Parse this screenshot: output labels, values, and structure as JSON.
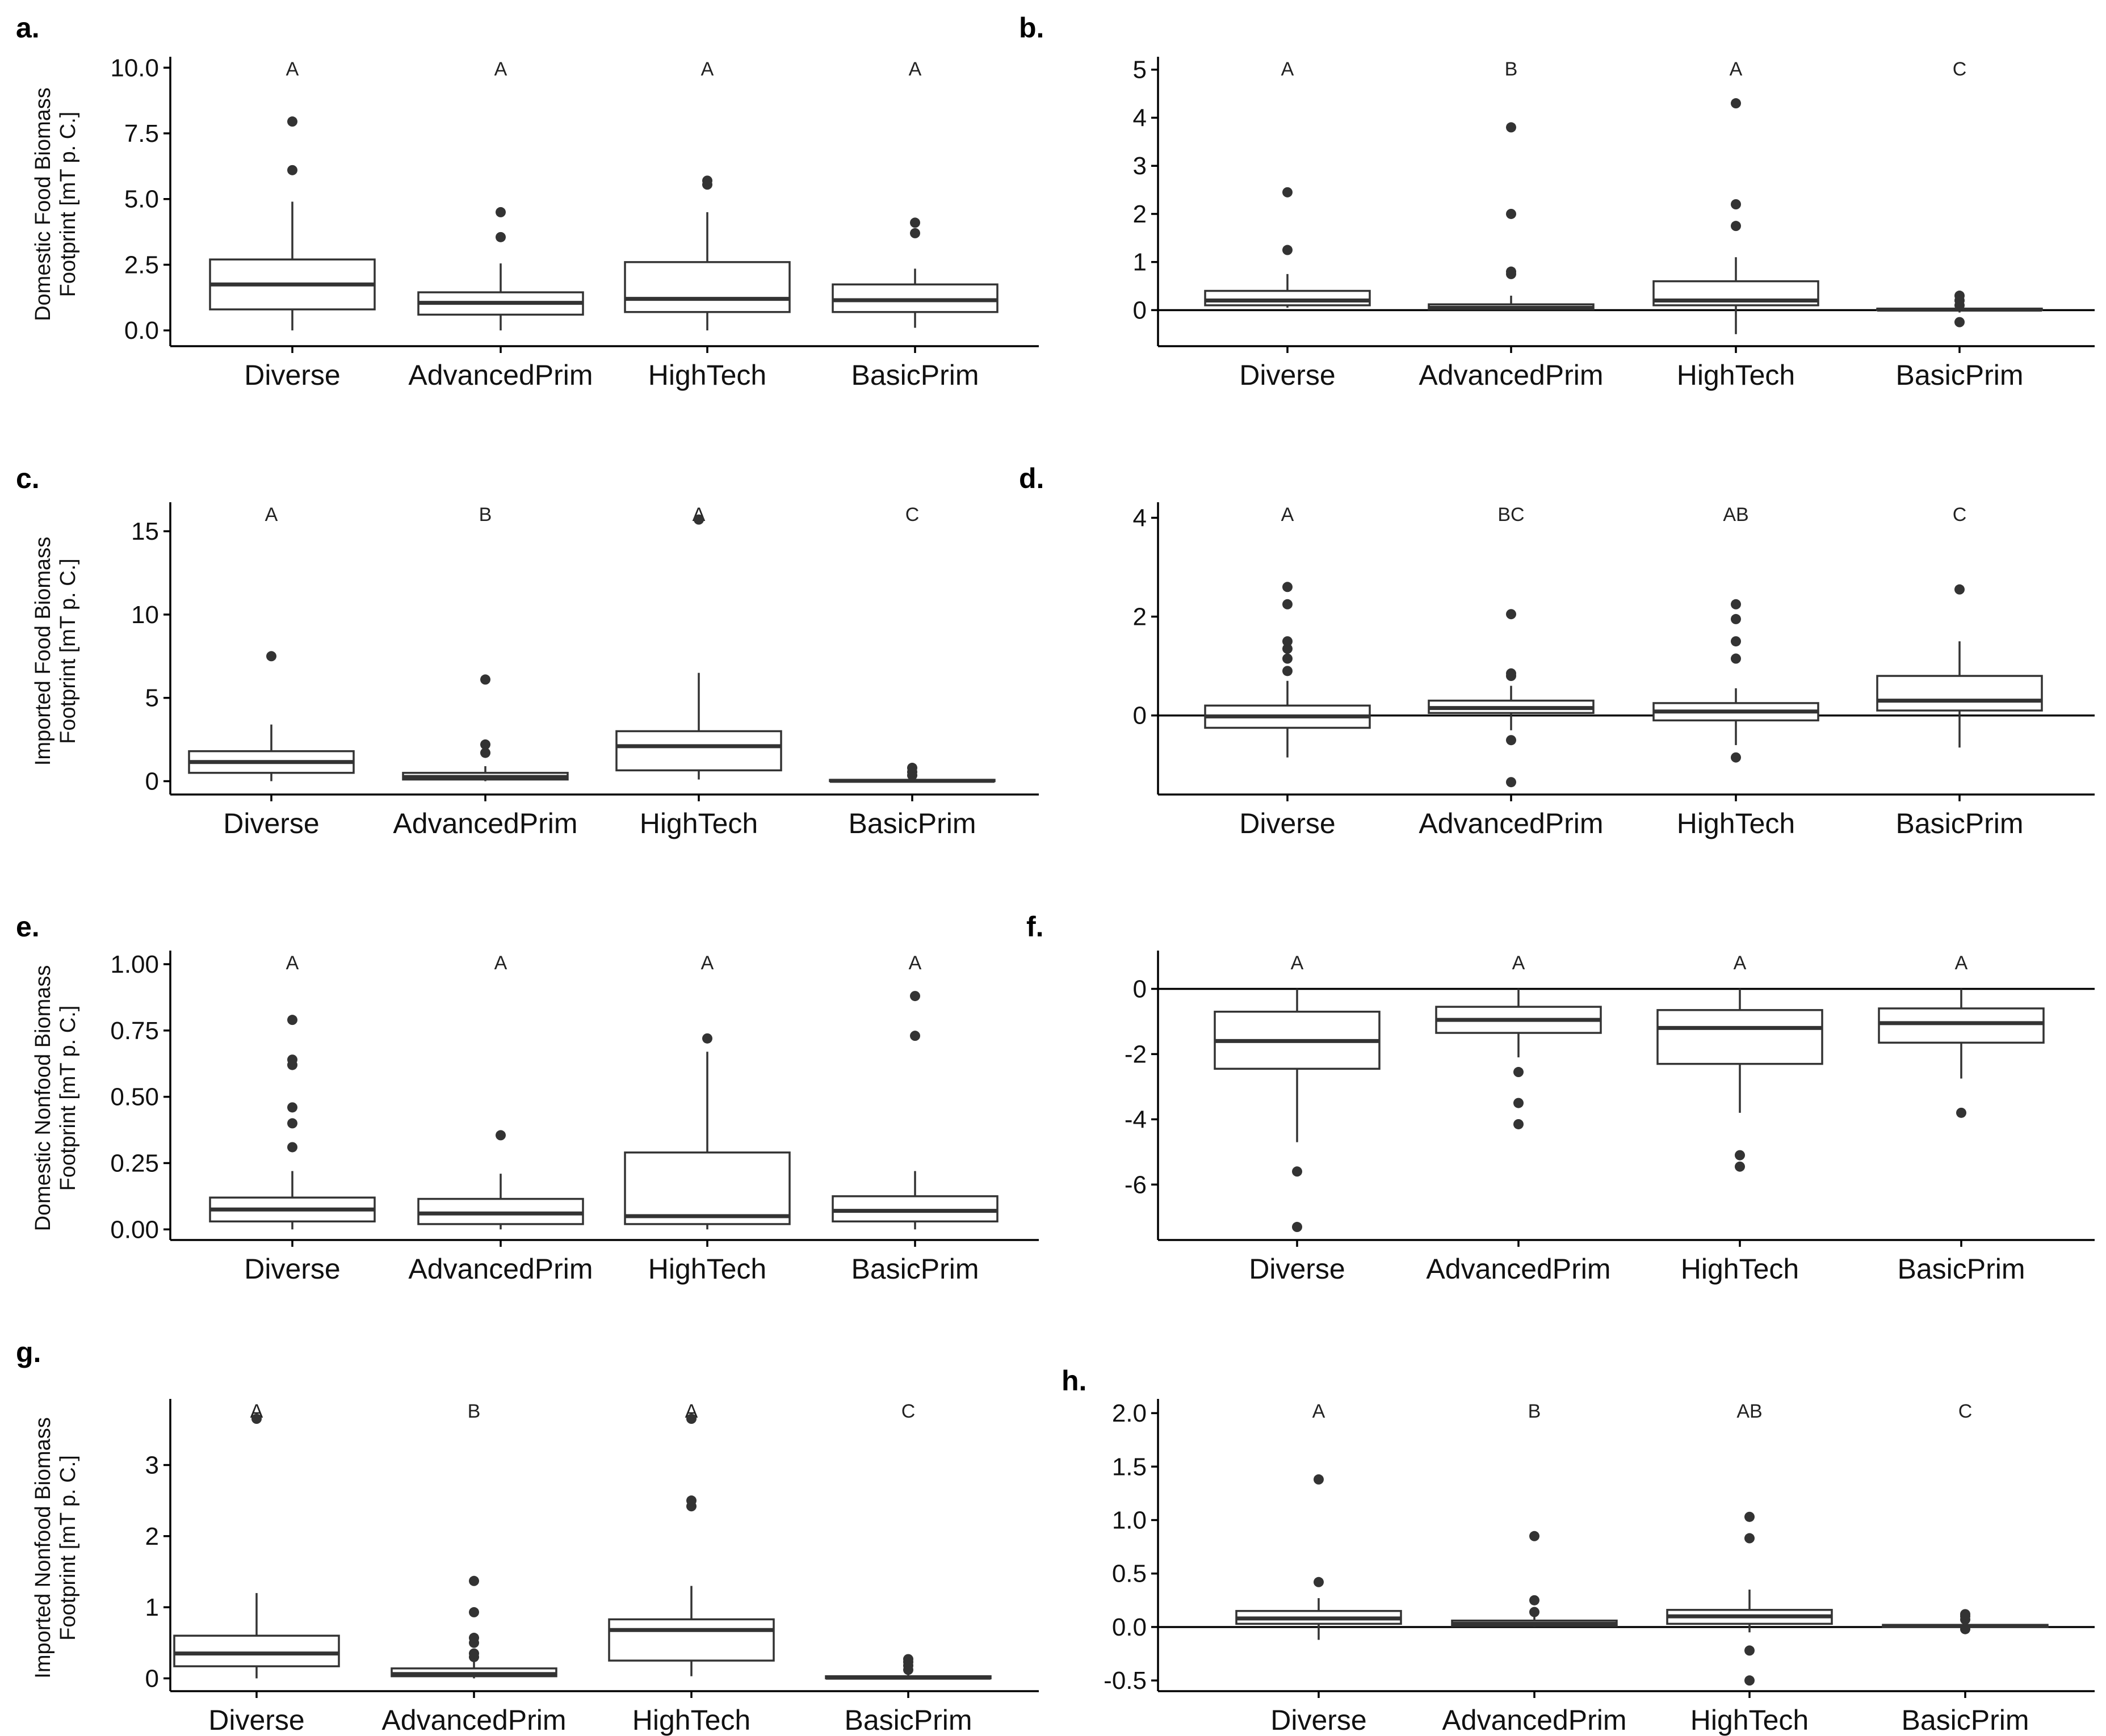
{
  "chart_data": [
    {
      "panel": "a.",
      "type": "boxplot",
      "ylabel": [
        "Domestic Food Biomass",
        "Footprint [mT p. C.]"
      ],
      "yticks": [
        "0.0",
        "2.5",
        "5.0",
        "7.5",
        "10.0"
      ],
      "ytick_values": [
        0,
        2.5,
        5,
        7.5,
        10
      ],
      "ylim": [
        -0.6,
        10.2
      ],
      "zero_line": false,
      "groups": [
        {
          "name": "Diverse",
          "letter": "A",
          "whisker_low": 0,
          "q1": 0.8,
          "median": 1.75,
          "q3": 2.7,
          "whisker_high": 4.9,
          "outliers": [
            6.1,
            7.95
          ]
        },
        {
          "name": "AdvancedPrim",
          "letter": "A",
          "whisker_low": 0,
          "q1": 0.6,
          "median": 1.05,
          "q3": 1.45,
          "whisker_high": 2.55,
          "outliers": [
            3.55,
            4.5
          ]
        },
        {
          "name": "HighTech",
          "letter": "A",
          "whisker_low": 0,
          "q1": 0.7,
          "median": 1.2,
          "q3": 2.6,
          "whisker_high": 4.5,
          "outliers": [
            5.55,
            5.7
          ]
        },
        {
          "name": "BasicPrim",
          "letter": "A",
          "whisker_low": 0.1,
          "q1": 0.7,
          "median": 1.15,
          "q3": 1.75,
          "whisker_high": 2.35,
          "outliers": [
            3.7,
            4.1
          ]
        }
      ]
    },
    {
      "panel": "b.",
      "type": "boxplot",
      "ylabel": [],
      "yticks": [
        "0",
        "1",
        "2",
        "3",
        "4",
        "5"
      ],
      "ytick_values": [
        0,
        1,
        2,
        3,
        4,
        5
      ],
      "ylim": [
        -0.75,
        5.15
      ],
      "zero_line": true,
      "groups": [
        {
          "name": "Diverse",
          "letter": "A",
          "whisker_low": 0.05,
          "q1": 0.1,
          "median": 0.2,
          "q3": 0.4,
          "whisker_high": 0.75,
          "outliers": [
            1.25,
            2.45
          ]
        },
        {
          "name": "AdvancedPrim",
          "letter": "B",
          "whisker_low": 0,
          "q1": 0.02,
          "median": 0.05,
          "q3": 0.12,
          "whisker_high": 0.3,
          "outliers": [
            0.75,
            0.8,
            2.0,
            3.8
          ]
        },
        {
          "name": "HighTech",
          "letter": "A",
          "whisker_low": -0.5,
          "q1": 0.1,
          "median": 0.2,
          "q3": 0.6,
          "whisker_high": 1.1,
          "outliers": [
            1.75,
            2.2,
            4.3
          ]
        },
        {
          "name": "BasicPrim",
          "letter": "C",
          "whisker_low": -0.05,
          "q1": 0,
          "median": 0.01,
          "q3": 0.03,
          "whisker_high": 0.08,
          "outliers": [
            0.3,
            0.2,
            0.1,
            -0.25
          ]
        }
      ]
    },
    {
      "panel": "c.",
      "type": "boxplot",
      "ylabel": [
        "Imported Food Biomass",
        "Footprint [mT p. C.]"
      ],
      "yticks": [
        "0",
        "5",
        "10",
        "15"
      ],
      "ytick_values": [
        0,
        5,
        10,
        15
      ],
      "ylim": [
        -0.8,
        16.4
      ],
      "zero_line": false,
      "groups": [
        {
          "name": "Diverse",
          "letter": "A",
          "whisker_low": 0,
          "q1": 0.5,
          "median": 1.15,
          "q3": 1.8,
          "whisker_high": 3.4,
          "outliers": [
            7.5
          ]
        },
        {
          "name": "AdvancedPrim",
          "letter": "B",
          "whisker_low": 0,
          "q1": 0.1,
          "median": 0.25,
          "q3": 0.5,
          "whisker_high": 0.9,
          "outliers": [
            1.7,
            2.2,
            6.1
          ]
        },
        {
          "name": "HighTech",
          "letter": "A",
          "whisker_low": 0.1,
          "q1": 0.65,
          "median": 2.1,
          "q3": 3.0,
          "whisker_high": 6.5,
          "outliers": [
            15.7
          ]
        },
        {
          "name": "BasicPrim",
          "letter": "C",
          "whisker_low": 0,
          "q1": 0,
          "median": 0.02,
          "q3": 0.08,
          "whisker_high": 0.2,
          "outliers": [
            0.35,
            0.55,
            0.8
          ]
        }
      ]
    },
    {
      "panel": "d.",
      "type": "boxplot",
      "ylabel": [],
      "yticks": [
        "0",
        "2",
        "4"
      ],
      "ytick_values": [
        0,
        2,
        4
      ],
      "ylim": [
        -1.6,
        4.2
      ],
      "zero_line": true,
      "groups": [
        {
          "name": "Diverse",
          "letter": "A",
          "whisker_low": -0.85,
          "q1": -0.25,
          "median": -0.02,
          "q3": 0.2,
          "whisker_high": 0.7,
          "outliers": [
            0.9,
            1.15,
            1.35,
            1.5,
            2.25,
            2.6
          ]
        },
        {
          "name": "AdvancedPrim",
          "letter": "BC",
          "whisker_low": -0.3,
          "q1": 0.05,
          "median": 0.15,
          "q3": 0.3,
          "whisker_high": 0.6,
          "outliers": [
            0.8,
            0.85,
            2.05,
            -0.5,
            -1.35
          ]
        },
        {
          "name": "HighTech",
          "letter": "AB",
          "whisker_low": -0.6,
          "q1": -0.1,
          "median": 0.08,
          "q3": 0.25,
          "whisker_high": 0.55,
          "outliers": [
            1.15,
            1.5,
            1.95,
            2.25,
            -0.85
          ]
        },
        {
          "name": "BasicPrim",
          "letter": "C",
          "whisker_low": -0.65,
          "q1": 0.1,
          "median": 0.3,
          "q3": 0.8,
          "whisker_high": 1.5,
          "outliers": [
            2.55
          ]
        }
      ]
    },
    {
      "panel": "e.",
      "type": "boxplot",
      "ylabel": [
        "Domestic Nonfood Biomass",
        "Footprint [mT p. C.]"
      ],
      "yticks": [
        "0.00",
        "0.25",
        "0.50",
        "0.75",
        "1.00"
      ],
      "ytick_values": [
        0,
        0.25,
        0.5,
        0.75,
        1.0
      ],
      "ylim": [
        -0.04,
        1.03
      ],
      "zero_line": false,
      "groups": [
        {
          "name": "Diverse",
          "letter": "A",
          "whisker_low": 0,
          "q1": 0.03,
          "median": 0.075,
          "q3": 0.12,
          "whisker_high": 0.22,
          "outliers": [
            0.31,
            0.4,
            0.46,
            0.62,
            0.64,
            0.79
          ]
        },
        {
          "name": "AdvancedPrim",
          "letter": "A",
          "whisker_low": 0,
          "q1": 0.02,
          "median": 0.06,
          "q3": 0.115,
          "whisker_high": 0.21,
          "outliers": [
            0.355
          ]
        },
        {
          "name": "HighTech",
          "letter": "A",
          "whisker_low": 0,
          "q1": 0.02,
          "median": 0.05,
          "q3": 0.29,
          "whisker_high": 0.67,
          "outliers": [
            0.72
          ]
        },
        {
          "name": "BasicPrim",
          "letter": "A",
          "whisker_low": 0,
          "q1": 0.03,
          "median": 0.07,
          "q3": 0.125,
          "whisker_high": 0.22,
          "outliers": [
            0.73,
            0.88
          ]
        }
      ]
    },
    {
      "panel": "f.",
      "type": "boxplot",
      "ylabel": [],
      "yticks": [
        "-6",
        "-4",
        "-2",
        "0"
      ],
      "ytick_values": [
        -6,
        -4,
        -2,
        0
      ],
      "ylim": [
        -7.7,
        1.0
      ],
      "zero_line": true,
      "groups": [
        {
          "name": "Diverse",
          "letter": "A",
          "whisker_low": -4.7,
          "q1": -2.45,
          "median": -1.6,
          "q3": -0.7,
          "whisker_high": 0,
          "outliers": [
            -5.6,
            -7.3
          ]
        },
        {
          "name": "AdvancedPrim",
          "letter": "A",
          "whisker_low": -2.1,
          "q1": -1.35,
          "median": -0.95,
          "q3": -0.55,
          "whisker_high": 0,
          "outliers": [
            -2.55,
            -3.5,
            -4.15
          ]
        },
        {
          "name": "HighTech",
          "letter": "A",
          "whisker_low": -3.8,
          "q1": -2.3,
          "median": -1.2,
          "q3": -0.65,
          "whisker_high": 0,
          "outliers": [
            -5.1,
            -5.45
          ]
        },
        {
          "name": "BasicPrim",
          "letter": "A",
          "whisker_low": -2.75,
          "q1": -1.65,
          "median": -1.05,
          "q3": -0.6,
          "whisker_high": 0,
          "outliers": [
            -3.8
          ]
        }
      ]
    },
    {
      "panel": "g.",
      "type": "boxplot",
      "ylabel": [
        "Imported Nonfood Biomass",
        "Footprint [mT p. C.]"
      ],
      "yticks": [
        "0",
        "1",
        "2",
        "3"
      ],
      "ytick_values": [
        0,
        1,
        2,
        3
      ],
      "ylim": [
        -0.18,
        3.85
      ],
      "zero_line": false,
      "groups": [
        {
          "name": "Diverse",
          "letter": "A",
          "whisker_low": 0,
          "q1": 0.17,
          "median": 0.35,
          "q3": 0.6,
          "whisker_high": 1.2,
          "outliers": [
            3.65
          ]
        },
        {
          "name": "AdvancedPrim",
          "letter": "B",
          "whisker_low": 0,
          "q1": 0.03,
          "median": 0.06,
          "q3": 0.14,
          "whisker_high": 0.25,
          "outliers": [
            0.3,
            0.35,
            0.5,
            0.57,
            0.93,
            1.37
          ]
        },
        {
          "name": "HighTech",
          "letter": "A",
          "whisker_low": 0.03,
          "q1": 0.25,
          "median": 0.68,
          "q3": 0.83,
          "whisker_high": 1.3,
          "outliers": [
            2.42,
            2.5,
            3.65
          ]
        },
        {
          "name": "BasicPrim",
          "letter": "C",
          "whisker_low": 0,
          "q1": 0,
          "median": 0.01,
          "q3": 0.03,
          "whisker_high": 0.07,
          "outliers": [
            0.12,
            0.18,
            0.23,
            0.27
          ]
        }
      ]
    },
    {
      "panel": "h.",
      "type": "boxplot",
      "ylabel": [],
      "yticks": [
        "-0.5",
        "0.0",
        "0.5",
        "1.0",
        "1.5",
        "2.0"
      ],
      "ytick_values": [
        -0.5,
        0,
        0.5,
        1.0,
        1.5,
        2.0
      ],
      "ylim": [
        -0.6,
        2.08
      ],
      "zero_line": true,
      "groups": [
        {
          "name": "Diverse",
          "letter": "A",
          "whisker_low": -0.12,
          "q1": 0.03,
          "median": 0.08,
          "q3": 0.15,
          "whisker_high": 0.27,
          "outliers": [
            0.42,
            1.38
          ]
        },
        {
          "name": "AdvancedPrim",
          "letter": "B",
          "whisker_low": 0,
          "q1": 0.01,
          "median": 0.03,
          "q3": 0.06,
          "whisker_high": 0.1,
          "outliers": [
            0.14,
            0.25,
            0.85
          ]
        },
        {
          "name": "HighTech",
          "letter": "AB",
          "whisker_low": -0.05,
          "q1": 0.03,
          "median": 0.1,
          "q3": 0.16,
          "whisker_high": 0.35,
          "outliers": [
            0.83,
            1.03,
            -0.22,
            -0.5
          ]
        },
        {
          "name": "BasicPrim",
          "letter": "C",
          "whisker_low": -0.02,
          "q1": 0,
          "median": 0.01,
          "q3": 0.02,
          "whisker_high": 0.04,
          "outliers": [
            0.07,
            0.1,
            0.12,
            -0.02
          ]
        }
      ]
    }
  ]
}
